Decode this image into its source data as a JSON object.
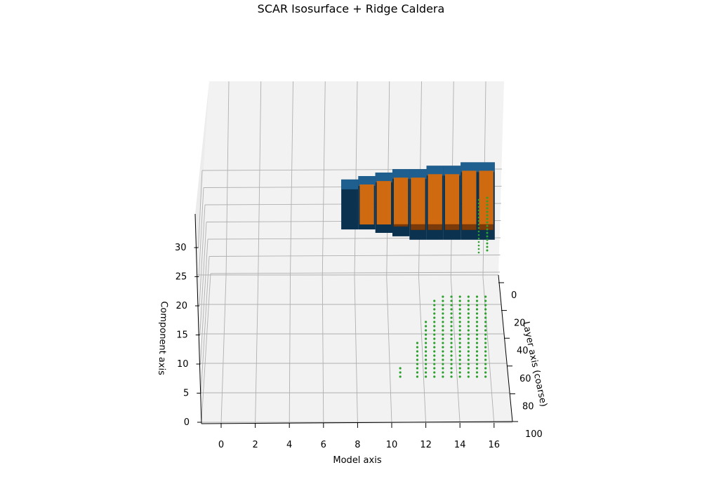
{
  "chart_data": {
    "type": "3d-voxel-scatter",
    "title": "SCAR Isosurface + Ridge Caldera",
    "xlabel": "Model axis",
    "ylabel": "Layer axis (coarse)",
    "zlabel": "Component axis",
    "x_ticks": [
      "0",
      "2",
      "4",
      "6",
      "8",
      "10",
      "12",
      "14",
      "16"
    ],
    "y_ticks": [
      "0",
      "20",
      "40",
      "60",
      "80",
      "100"
    ],
    "z_ticks": [
      "0",
      "5",
      "10",
      "15",
      "20",
      "25",
      "30"
    ],
    "xlim": [
      -1,
      17
    ],
    "ylim": [
      0,
      100
    ],
    "zlim": [
      0,
      36
    ],
    "grid": true,
    "colors": {
      "isosurface": "#1f5f8f",
      "isosurface_shade": "#0b3350",
      "isosurface_front": "#7a3a0a",
      "isosurface_top": "#d06a10",
      "ridge_points": "#2ca02c",
      "pane": "#f2f2f2",
      "grid": "#b0b0b0"
    },
    "series": [
      {
        "name": "",
        "type": "voxels",
        "color": "#1f77b4",
        "columns": [
          {
            "x": 7,
            "z_bottom": 21,
            "z_top": 29
          },
          {
            "x": 8,
            "z_bottom": 21,
            "z_top": 30
          },
          {
            "x": 9,
            "z_bottom": 20,
            "z_top": 31
          },
          {
            "x": 10,
            "z_bottom": 19,
            "z_top": 32
          },
          {
            "x": 11,
            "z_bottom": 18,
            "z_top": 32
          },
          {
            "x": 12,
            "z_bottom": 18,
            "z_top": 33
          },
          {
            "x": 13,
            "z_bottom": 18,
            "z_top": 33
          },
          {
            "x": 14,
            "z_bottom": 18,
            "z_top": 34
          },
          {
            "x": 15,
            "z_bottom": 18,
            "z_top": 34
          }
        ]
      },
      {
        "name": "",
        "type": "scatter",
        "color": "#2ca02c",
        "columns": [
          {
            "x": 10.5,
            "z_top": 13
          },
          {
            "x": 11.5,
            "z_top": 15
          },
          {
            "x": 12,
            "z_top": 17
          },
          {
            "x": 12.5,
            "z_top": 19
          },
          {
            "x": 13,
            "z_top": 20
          },
          {
            "x": 13.5,
            "z_top": 20
          },
          {
            "x": 14,
            "z_top": 20
          },
          {
            "x": 14.5,
            "z_top": 20
          },
          {
            "x": 15,
            "z_top": 21
          },
          {
            "x": 15.5,
            "z_top": 21
          }
        ]
      }
    ]
  }
}
